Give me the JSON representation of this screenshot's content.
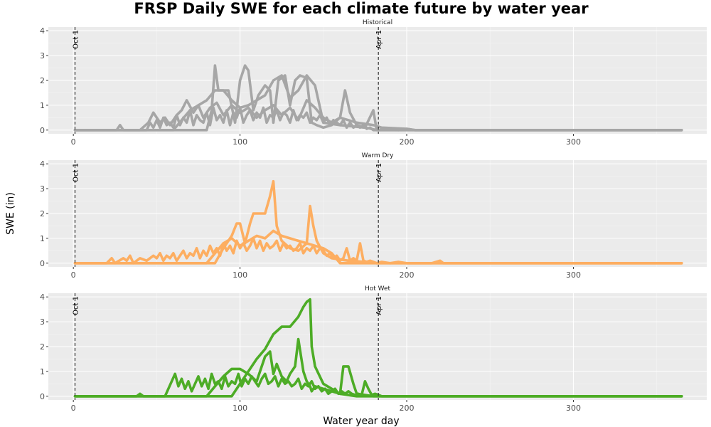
{
  "chart_data": {
    "type": "line",
    "title": "FRSP Daily SWE for each climate future by water year",
    "xlabel": "Water year day",
    "ylabel": "SWE (in)",
    "xlim": [
      -15,
      380
    ],
    "ylim": [
      -0.15,
      4.15
    ],
    "x_ticks": [
      0,
      100,
      200,
      300
    ],
    "y_ticks": [
      0,
      1,
      2,
      3,
      4
    ],
    "grid": true,
    "vlines": [
      {
        "x": 1,
        "label": "Oct 1"
      },
      {
        "x": 183,
        "label": "Apr 1"
      }
    ],
    "panels": [
      {
        "name": "Historical",
        "color": "#a6a6a6",
        "series": [
          {
            "x": [
              1,
              80,
              83,
              85,
              87,
              90,
              93,
              97,
              100,
              103,
              105,
              108,
              111,
              115,
              118,
              120,
              123,
              127,
              130,
              133,
              136,
              140,
              143,
              146,
              150,
              155,
              160,
              163,
              166,
              170,
              175,
              180,
              182,
              190,
              365
            ],
            "y": [
              0,
              0,
              0.8,
              2.6,
              1.6,
              1.6,
              1.6,
              0.3,
              2.0,
              2.6,
              2.4,
              0.8,
              1.4,
              1.8,
              1.6,
              0.3,
              2.0,
              2.2,
              1.0,
              2.0,
              2.2,
              2.1,
              0.3,
              0.2,
              0.1,
              0.2,
              0.5,
              1.6,
              0.7,
              0.2,
              0.1,
              0.8,
              0,
              0,
              0
            ]
          },
          {
            "x": [
              1,
              60,
              65,
              70,
              75,
              80,
              85,
              90,
              95,
              100,
              105,
              110,
              115,
              120,
              125,
              130,
              135,
              140,
              145,
              150,
              160,
              175,
              182,
              365
            ],
            "y": [
              0,
              0,
              0.4,
              0.8,
              1.0,
              1.2,
              1.6,
              1.6,
              1.2,
              0.9,
              1.0,
              1.2,
              1.4,
              2.0,
              2.2,
              1.3,
              1.6,
              2.2,
              1.8,
              0.3,
              0.2,
              0.1,
              0,
              0
            ]
          },
          {
            "x": [
              1,
              40,
              45,
              48,
              52,
              55,
              58,
              62,
              65,
              68,
              72,
              75,
              78,
              82,
              86,
              90,
              95,
              100,
              105,
              110,
              115,
              120,
              125,
              130,
              135,
              140,
              145,
              150,
              155,
              160,
              170,
              180,
              185,
              200,
              205,
              365
            ],
            "y": [
              0,
              0,
              0.3,
              0.7,
              0.3,
              0.5,
              0.2,
              0.6,
              0.8,
              1.2,
              0.7,
              1.0,
              0.5,
              0.9,
              1.1,
              0.6,
              1.0,
              0.7,
              0.9,
              0.5,
              0.8,
              1.0,
              0.6,
              0.9,
              0.4,
              1.2,
              0.9,
              0.5,
              0.3,
              0.5,
              0.3,
              0.2,
              0.1,
              0.05,
              0,
              0
            ]
          },
          {
            "x": [
              1,
              26,
              28,
              30,
              44,
              46,
              48,
              50,
              52,
              54,
              56,
              58,
              60,
              62,
              64,
              66,
              68,
              70,
              72,
              74,
              76,
              78,
              80,
              82,
              84,
              86,
              88,
              90,
              92,
              94,
              96,
              98,
              100,
              102,
              104,
              106,
              108,
              110,
              112,
              114,
              116,
              118,
              120,
              122,
              124,
              126,
              128,
              130,
              132,
              134,
              136,
              138,
              140,
              142,
              144,
              146,
              148,
              150,
              152,
              154,
              156,
              158,
              160,
              162,
              164,
              166,
              168,
              170,
              172,
              174,
              176,
              178,
              180,
              182,
              190,
              195,
              200,
              205,
              365
            ],
            "y": [
              0,
              0,
              0.2,
              0,
              0,
              0.3,
              0.1,
              0.4,
              0.1,
              0.5,
              0.2,
              0.3,
              0.1,
              0.6,
              0.2,
              0.5,
              0.3,
              0.8,
              0.2,
              0.6,
              0.4,
              0.3,
              0.7,
              0.2,
              0.9,
              0.4,
              0.6,
              0.3,
              0.8,
              0.2,
              0.7,
              0.5,
              0.9,
              0.3,
              0.6,
              0.8,
              0.4,
              0.7,
              0.5,
              0.9,
              0.3,
              0.6,
              0.5,
              0.8,
              0.4,
              0.7,
              0.6,
              0.3,
              0.8,
              0.4,
              0.6,
              0.5,
              0.7,
              0.3,
              0.5,
              0.4,
              0.6,
              0.3,
              0.5,
              0.2,
              0.4,
              0.3,
              0.2,
              0.4,
              0.1,
              0.3,
              0.1,
              0.2,
              0.1,
              0.2,
              0.05,
              0.1,
              0,
              0,
              0.05,
              0,
              0.05,
              0,
              0
            ]
          }
        ]
      },
      {
        "name": "Warm Dry",
        "color": "#fdae61",
        "series": [
          {
            "x": [
              1,
              85,
              90,
              95,
              98,
              100,
              103,
              106,
              108,
              112,
              115,
              118,
              120,
              122,
              125,
              130,
              135,
              140,
              142,
              144,
              146,
              150,
              155,
              165,
              175,
              182,
              200,
              365
            ],
            "y": [
              0,
              0,
              0.6,
              1.1,
              1.6,
              1.6,
              0.8,
              1.6,
              2.0,
              2.0,
              2.0,
              2.7,
              3.3,
              1.5,
              0.9,
              0.6,
              0.5,
              0.8,
              2.3,
              1.5,
              0.9,
              0.4,
              0.2,
              0.1,
              0.05,
              0,
              0,
              0
            ]
          },
          {
            "x": [
              1,
              80,
              85,
              90,
              95,
              100,
              105,
              110,
              115,
              120,
              125,
              130,
              135,
              140,
              145,
              150,
              155,
              160,
              365
            ],
            "y": [
              0,
              0,
              0.4,
              0.8,
              1.0,
              0.7,
              0.9,
              1.1,
              1.0,
              1.3,
              1.1,
              1.0,
              0.9,
              0.8,
              0.7,
              0.6,
              0.4,
              0,
              0
            ]
          },
          {
            "x": [
              1,
              20,
              23,
              25,
              30,
              32,
              34,
              36,
              40,
              44,
              48,
              50,
              52,
              54,
              56,
              58,
              60,
              62,
              64,
              66,
              68,
              70,
              72,
              74,
              76,
              78,
              80,
              82,
              84,
              86,
              88,
              90,
              92,
              94,
              96,
              98,
              100,
              102,
              104,
              106,
              108,
              110,
              112,
              114,
              116,
              118,
              120,
              122,
              124,
              126,
              128,
              130,
              132,
              134,
              136,
              138,
              140,
              142,
              144,
              146,
              148,
              150,
              152,
              154,
              156,
              158,
              160,
              162,
              164,
              166,
              168,
              170,
              172,
              174,
              176,
              178,
              180,
              182,
              185,
              190,
              195,
              200,
              215,
              220,
              222,
              225,
              365
            ],
            "y": [
              0,
              0,
              0.2,
              0,
              0.2,
              0.1,
              0.3,
              0,
              0.2,
              0.1,
              0.3,
              0.2,
              0.4,
              0.1,
              0.3,
              0.2,
              0.4,
              0.1,
              0.3,
              0.5,
              0.2,
              0.4,
              0.3,
              0.6,
              0.2,
              0.5,
              0.3,
              0.7,
              0.4,
              0.6,
              0.3,
              0.8,
              0.5,
              0.7,
              0.4,
              0.9,
              0.6,
              0.8,
              0.5,
              0.7,
              1.0,
              0.6,
              0.9,
              0.5,
              0.8,
              0.6,
              0.7,
              0.9,
              0.5,
              0.8,
              0.6,
              0.7,
              0.5,
              0.6,
              0.8,
              0.4,
              0.6,
              0.5,
              0.7,
              0.4,
              0.6,
              0.5,
              0.3,
              0.4,
              0.2,
              0.3,
              0.1,
              0.2,
              0.6,
              0.1,
              0.2,
              0.1,
              0.8,
              0.1,
              0.05,
              0.1,
              0.05,
              0,
              0.05,
              0,
              0.05,
              0,
              0,
              0.1,
              0,
              0,
              0
            ]
          }
        ]
      },
      {
        "name": "Hot Wet",
        "color": "#4dac26",
        "series": [
          {
            "x": [
              1,
              95,
              100,
              105,
              110,
              115,
              120,
              125,
              128,
              130,
              135,
              138,
              140,
              142,
              143,
              145,
              150,
              160,
              170,
              182,
              365
            ],
            "y": [
              0,
              0,
              0.5,
              1.0,
              1.5,
              1.9,
              2.5,
              2.8,
              2.8,
              2.8,
              3.2,
              3.6,
              3.8,
              3.9,
              2.0,
              1.2,
              0.5,
              0.1,
              0,
              0,
              0
            ]
          },
          {
            "x": [
              1,
              80,
              85,
              90,
              95,
              100,
              105,
              110,
              115,
              118,
              120,
              122,
              125,
              128,
              130,
              133,
              135,
              138,
              140,
              142,
              143,
              145,
              150,
              155,
              160,
              162,
              165,
              168,
              170,
              180,
              182,
              365
            ],
            "y": [
              0,
              0,
              0.4,
              0.8,
              1.1,
              1.1,
              0.9,
              0.6,
              1.6,
              1.8,
              0.9,
              1.3,
              0.8,
              0.6,
              0.9,
              1.2,
              2.3,
              1.0,
              0.6,
              0.4,
              0.2,
              0.4,
              0.3,
              0.2,
              0.1,
              1.2,
              1.2,
              0.5,
              0.1,
              0,
              0,
              0
            ]
          },
          {
            "x": [
              1,
              38,
              40,
              42,
              55,
              57,
              59,
              61,
              63,
              65,
              67,
              69,
              71,
              73,
              75,
              77,
              79,
              81,
              83,
              85,
              87,
              89,
              91,
              93,
              95,
              97,
              99,
              101,
              103,
              105,
              107,
              109,
              111,
              113,
              115,
              117,
              119,
              121,
              123,
              125,
              127,
              129,
              131,
              133,
              135,
              137,
              139,
              141,
              143,
              145,
              147,
              149,
              151,
              153,
              155,
              157,
              159,
              161,
              163,
              165,
              167,
              169,
              171,
              173,
              175,
              177,
              179,
              181,
              183,
              185,
              365
            ],
            "y": [
              0,
              0,
              0.1,
              0,
              0,
              0.3,
              0.6,
              0.9,
              0.4,
              0.7,
              0.3,
              0.6,
              0.2,
              0.5,
              0.8,
              0.4,
              0.7,
              0.3,
              0.9,
              0.5,
              0.6,
              0.3,
              0.8,
              0.4,
              0.6,
              0.5,
              0.9,
              0.4,
              0.7,
              0.5,
              0.8,
              0.6,
              0.4,
              0.7,
              0.9,
              0.5,
              0.6,
              0.8,
              0.4,
              0.7,
              0.5,
              0.6,
              0.4,
              0.5,
              0.7,
              0.3,
              0.5,
              0.4,
              0.6,
              0.3,
              0.4,
              0.2,
              0.3,
              0.1,
              0.2,
              0.3,
              0.1,
              0.2,
              0.1,
              0.2,
              0.1,
              0.05,
              0.1,
              0.05,
              0.6,
              0.3,
              0.05,
              0.1,
              0.05,
              0,
              0
            ]
          }
        ]
      }
    ]
  }
}
